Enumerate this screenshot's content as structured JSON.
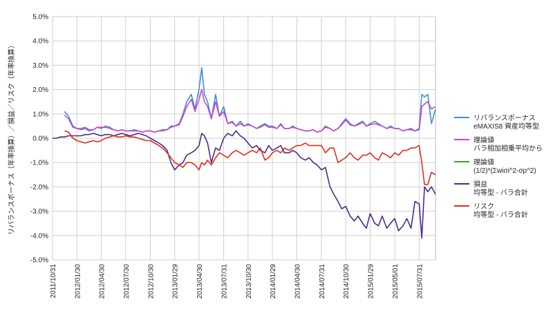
{
  "chart_data": {
    "type": "line",
    "title": "",
    "ylabel": "リバランスボーナス（年率換算）／損益／リスク（年率換算）",
    "ylim": [
      -5.0,
      5.0
    ],
    "yticks": [
      "5.0%",
      "4.0%",
      "3.0%",
      "2.0%",
      "1.0%",
      "0.0%",
      "-1.0%",
      "-2.0%",
      "-3.0%",
      "-4.0%",
      "-5.0%"
    ],
    "ytick_values": [
      5,
      4,
      3,
      2,
      1,
      0,
      -1,
      -2,
      -3,
      -4,
      -5
    ],
    "xticks": [
      "2011/10/31",
      "2012/01/30",
      "2012/04/30",
      "2012/07/30",
      "2012/10/30",
      "2013/01/29",
      "2013/04/30",
      "2013/07/31",
      "2013/10/30",
      "2014/01/29",
      "2014/04/30",
      "2014/07/31",
      "2014/10/30",
      "2015/01/29",
      "2015/05/01",
      "2015/07/31"
    ],
    "x_range": [
      "2011/10/31",
      "2015/09/30"
    ],
    "grid": true,
    "legend_position": "right",
    "series": [
      {
        "name": "リバランスボーナス\neMAXIS8 資産均等型",
        "color": "#3b8fd4",
        "x": [
          "2011/10/31",
          "2011/11/15",
          "2011/11/30",
          "2011/12/15",
          "2011/12/30",
          "2012/01/15",
          "2012/01/30",
          "2012/02/15",
          "2012/03/01",
          "2012/03/15",
          "2012/04/01",
          "2012/04/15",
          "2012/04/30",
          "2012/05/15",
          "2012/06/01",
          "2012/06/15",
          "2012/07/01",
          "2012/07/15",
          "2012/07/30",
          "2012/08/15",
          "2012/09/01",
          "2012/09/15",
          "2012/10/01",
          "2012/10/15",
          "2012/10/30",
          "2012/11/15",
          "2012/12/01",
          "2012/12/15",
          "2013/01/01",
          "2013/01/15",
          "2013/01/29",
          "2013/02/15",
          "2013/03/01",
          "2013/03/15",
          "2013/04/01",
          "2013/04/15",
          "2013/04/30",
          "2013/05/10",
          "2013/05/20",
          "2013/06/01",
          "2013/06/15",
          "2013/07/01",
          "2013/07/15",
          "2013/07/31",
          "2013/08/15",
          "2013/09/01",
          "2013/09/15",
          "2013/10/01",
          "2013/10/15",
          "2013/10/30",
          "2013/11/15",
          "2013/12/01",
          "2013/12/15",
          "2014/01/01",
          "2014/01/15",
          "2014/01/29",
          "2014/02/15",
          "2014/03/01",
          "2014/03/15",
          "2014/04/01",
          "2014/04/15",
          "2014/04/30",
          "2014/05/15",
          "2014/06/01",
          "2014/06/15",
          "2014/07/01",
          "2014/07/15",
          "2014/07/31",
          "2014/08/15",
          "2014/09/01",
          "2014/09/15",
          "2014/10/01",
          "2014/10/15",
          "2014/10/30",
          "2014/11/15",
          "2014/12/01",
          "2014/12/15",
          "2015/01/01",
          "2015/01/15",
          "2015/01/29",
          "2015/02/15",
          "2015/03/01",
          "2015/03/15",
          "2015/04/01",
          "2015/04/15",
          "2015/05/01",
          "2015/05/15",
          "2015/06/01",
          "2015/06/15",
          "2015/07/01",
          "2015/07/15",
          "2015/07/31",
          "2015/08/10",
          "2015/08/20",
          "2015/09/01",
          "2015/09/15",
          "2015/09/30"
        ],
        "values": [
          null,
          null,
          null,
          1.1,
          0.9,
          0.5,
          0.4,
          0.35,
          0.4,
          0.3,
          0.35,
          0.45,
          0.4,
          0.5,
          0.45,
          0.35,
          0.3,
          0.35,
          0.3,
          0.3,
          0.35,
          0.3,
          0.25,
          0.3,
          0.3,
          0.25,
          0.3,
          0.35,
          0.35,
          0.5,
          0.5,
          0.6,
          1.0,
          1.5,
          1.8,
          1.2,
          2.0,
          2.9,
          1.8,
          1.5,
          0.8,
          1.8,
          0.9,
          1.3,
          0.6,
          0.7,
          0.5,
          0.7,
          0.5,
          0.6,
          0.5,
          0.4,
          0.5,
          0.6,
          0.5,
          0.5,
          0.4,
          0.6,
          0.4,
          0.4,
          0.5,
          0.4,
          0.35,
          0.3,
          0.3,
          0.35,
          0.25,
          0.3,
          0.5,
          0.4,
          0.3,
          0.4,
          0.6,
          0.8,
          0.6,
          0.5,
          0.6,
          0.7,
          0.5,
          0.6,
          0.7,
          0.6,
          0.5,
          0.4,
          0.5,
          0.4,
          0.4,
          0.3,
          0.35,
          0.4,
          0.3,
          0.4,
          1.8,
          1.7,
          1.8,
          0.6,
          1.2
        ]
      },
      {
        "name": "理論値\nバラ相加相乗平均から",
        "color": "#cc44cc",
        "x": [
          "2011/10/31",
          "2011/11/15",
          "2011/11/30",
          "2011/12/15",
          "2011/12/30",
          "2012/01/15",
          "2012/01/30",
          "2012/02/15",
          "2012/03/01",
          "2012/03/15",
          "2012/04/01",
          "2012/04/15",
          "2012/04/30",
          "2012/05/15",
          "2012/06/01",
          "2012/06/15",
          "2012/07/01",
          "2012/07/15",
          "2012/07/30",
          "2012/08/15",
          "2012/09/01",
          "2012/09/15",
          "2012/10/01",
          "2012/10/15",
          "2012/10/30",
          "2012/11/15",
          "2012/12/01",
          "2012/12/15",
          "2013/01/01",
          "2013/01/15",
          "2013/01/29",
          "2013/02/15",
          "2013/03/01",
          "2013/03/15",
          "2013/04/01",
          "2013/04/15",
          "2013/04/30",
          "2013/05/10",
          "2013/05/20",
          "2013/06/01",
          "2013/06/15",
          "2013/07/01",
          "2013/07/15",
          "2013/07/31",
          "2013/08/15",
          "2013/09/01",
          "2013/09/15",
          "2013/10/01",
          "2013/10/15",
          "2013/10/30",
          "2013/11/15",
          "2013/12/01",
          "2013/12/15",
          "2014/01/01",
          "2014/01/15",
          "2014/01/29",
          "2014/02/15",
          "2014/03/01",
          "2014/03/15",
          "2014/04/01",
          "2014/04/15",
          "2014/04/30",
          "2014/05/15",
          "2014/06/01",
          "2014/06/15",
          "2014/07/01",
          "2014/07/15",
          "2014/07/31",
          "2014/08/15",
          "2014/09/01",
          "2014/09/15",
          "2014/10/01",
          "2014/10/15",
          "2014/10/30",
          "2014/11/15",
          "2014/12/01",
          "2014/12/15",
          "2015/01/01",
          "2015/01/15",
          "2015/01/29",
          "2015/02/15",
          "2015/03/01",
          "2015/03/15",
          "2015/04/01",
          "2015/04/15",
          "2015/05/01",
          "2015/05/15",
          "2015/06/01",
          "2015/06/15",
          "2015/07/01",
          "2015/07/15",
          "2015/07/31",
          "2015/08/10",
          "2015/08/20",
          "2015/09/01",
          "2015/09/15",
          "2015/09/30"
        ],
        "values": [
          null,
          null,
          null,
          0.95,
          0.8,
          0.45,
          0.4,
          0.4,
          0.45,
          0.35,
          0.35,
          0.45,
          0.45,
          0.45,
          0.4,
          0.35,
          0.3,
          0.35,
          0.3,
          0.3,
          0.3,
          0.3,
          0.25,
          0.3,
          0.3,
          0.25,
          0.3,
          0.3,
          0.35,
          0.45,
          0.5,
          0.55,
          0.9,
          1.3,
          1.6,
          1.1,
          1.6,
          2.0,
          1.5,
          1.3,
          0.8,
          1.5,
          0.9,
          1.1,
          0.6,
          0.65,
          0.5,
          0.6,
          0.5,
          0.55,
          0.5,
          0.4,
          0.45,
          0.55,
          0.45,
          0.45,
          0.4,
          0.55,
          0.4,
          0.4,
          0.45,
          0.4,
          0.35,
          0.3,
          0.3,
          0.35,
          0.25,
          0.3,
          0.45,
          0.4,
          0.3,
          0.4,
          0.55,
          0.75,
          0.55,
          0.5,
          0.55,
          0.65,
          0.5,
          0.55,
          0.6,
          0.55,
          0.5,
          0.4,
          0.45,
          0.4,
          0.4,
          0.3,
          0.35,
          0.35,
          0.3,
          0.35,
          1.3,
          1.4,
          1.5,
          1.2,
          1.3
        ]
      },
      {
        "name": "理論値\n(1/2)*(Σwiσi^2-σp^2)",
        "color": "#3a9e2a",
        "x": [],
        "values": []
      },
      {
        "name": "損益\n均等型 - バラ合計",
        "color": "#4b2a8a",
        "x": [
          "2011/10/31",
          "2011/11/15",
          "2011/11/30",
          "2011/12/15",
          "2011/12/30",
          "2012/01/15",
          "2012/01/30",
          "2012/02/15",
          "2012/03/01",
          "2012/03/15",
          "2012/04/01",
          "2012/04/15",
          "2012/04/30",
          "2012/05/15",
          "2012/06/01",
          "2012/06/15",
          "2012/07/01",
          "2012/07/15",
          "2012/07/30",
          "2012/08/15",
          "2012/09/01",
          "2012/09/15",
          "2012/10/01",
          "2012/10/15",
          "2012/10/30",
          "2012/11/15",
          "2012/12/01",
          "2012/12/15",
          "2013/01/01",
          "2013/01/15",
          "2013/01/29",
          "2013/02/15",
          "2013/03/01",
          "2013/03/15",
          "2013/04/01",
          "2013/04/15",
          "2013/04/30",
          "2013/05/10",
          "2013/05/20",
          "2013/06/01",
          "2013/06/15",
          "2013/07/01",
          "2013/07/15",
          "2013/07/31",
          "2013/08/15",
          "2013/09/01",
          "2013/09/15",
          "2013/10/01",
          "2013/10/15",
          "2013/10/30",
          "2013/11/15",
          "2013/12/01",
          "2013/12/15",
          "2014/01/01",
          "2014/01/15",
          "2014/01/29",
          "2014/02/15",
          "2014/03/01",
          "2014/03/15",
          "2014/04/01",
          "2014/04/15",
          "2014/04/30",
          "2014/05/15",
          "2014/06/01",
          "2014/06/15",
          "2014/07/01",
          "2014/07/15",
          "2014/07/31",
          "2014/08/15",
          "2014/09/01",
          "2014/09/15",
          "2014/10/01",
          "2014/10/15",
          "2014/10/30",
          "2014/11/15",
          "2014/12/01",
          "2014/12/15",
          "2015/01/01",
          "2015/01/15",
          "2015/01/29",
          "2015/02/15",
          "2015/03/01",
          "2015/03/15",
          "2015/04/01",
          "2015/04/15",
          "2015/05/01",
          "2015/05/15",
          "2015/06/01",
          "2015/06/15",
          "2015/07/01",
          "2015/07/15",
          "2015/07/31",
          "2015/08/10",
          "2015/08/20",
          "2015/09/01",
          "2015/09/15",
          "2015/09/30"
        ],
        "values": [
          0.0,
          0.0,
          0.05,
          0.05,
          0.1,
          0.1,
          0.1,
          0.1,
          0.15,
          0.15,
          0.2,
          0.15,
          0.1,
          0.15,
          0.15,
          0.1,
          0.15,
          0.2,
          0.15,
          0.1,
          0.15,
          0.2,
          0.15,
          0.1,
          0.0,
          -0.1,
          -0.2,
          -0.3,
          -0.5,
          -1.0,
          -1.3,
          -1.1,
          -1.0,
          -0.7,
          -0.6,
          -0.5,
          -0.3,
          0.2,
          0.1,
          -0.2,
          -1.0,
          -0.4,
          -0.5,
          0.0,
          0.2,
          0.1,
          0.3,
          0.1,
          0.0,
          -0.2,
          -0.4,
          -0.3,
          -0.5,
          -0.6,
          -0.3,
          -0.5,
          -0.4,
          -0.3,
          -0.6,
          -0.6,
          -0.5,
          -0.6,
          -0.8,
          -0.9,
          -0.8,
          -1.0,
          -1.1,
          -1.3,
          -1.2,
          -2.0,
          -2.3,
          -2.6,
          -2.9,
          -2.8,
          -3.2,
          -3.4,
          -3.2,
          -3.5,
          -3.7,
          -3.1,
          -3.5,
          -3.6,
          -3.2,
          -3.7,
          -3.5,
          -3.3,
          -3.8,
          -3.6,
          -3.3,
          -3.7,
          -2.6,
          -2.7,
          -4.1,
          -2.0,
          -2.2,
          -2.0,
          -2.3
        ]
      },
      {
        "name": "リスク\n均等型 - バラ合計",
        "color": "#d9301a",
        "x": [
          "2011/10/31",
          "2011/11/15",
          "2011/11/30",
          "2011/12/15",
          "2011/12/30",
          "2012/01/15",
          "2012/01/30",
          "2012/02/15",
          "2012/03/01",
          "2012/03/15",
          "2012/04/01",
          "2012/04/15",
          "2012/04/30",
          "2012/05/15",
          "2012/06/01",
          "2012/06/15",
          "2012/07/01",
          "2012/07/15",
          "2012/07/30",
          "2012/08/15",
          "2012/09/01",
          "2012/09/15",
          "2012/10/01",
          "2012/10/15",
          "2012/10/30",
          "2012/11/15",
          "2012/12/01",
          "2012/12/15",
          "2013/01/01",
          "2013/01/15",
          "2013/01/29",
          "2013/02/15",
          "2013/03/01",
          "2013/03/15",
          "2013/04/01",
          "2013/04/15",
          "2013/04/30",
          "2013/05/10",
          "2013/05/20",
          "2013/06/01",
          "2013/06/15",
          "2013/07/01",
          "2013/07/15",
          "2013/07/31",
          "2013/08/15",
          "2013/09/01",
          "2013/09/15",
          "2013/10/01",
          "2013/10/15",
          "2013/10/30",
          "2013/11/15",
          "2013/12/01",
          "2013/12/15",
          "2014/01/01",
          "2014/01/15",
          "2014/01/29",
          "2014/02/15",
          "2014/03/01",
          "2014/03/15",
          "2014/04/01",
          "2014/04/15",
          "2014/04/30",
          "2014/05/15",
          "2014/06/01",
          "2014/06/15",
          "2014/07/01",
          "2014/07/15",
          "2014/07/31",
          "2014/08/15",
          "2014/09/01",
          "2014/09/15",
          "2014/10/01",
          "2014/10/15",
          "2014/10/30",
          "2014/11/15",
          "2014/12/01",
          "2014/12/15",
          "2015/01/01",
          "2015/01/15",
          "2015/01/29",
          "2015/02/15",
          "2015/03/01",
          "2015/03/15",
          "2015/04/01",
          "2015/04/15",
          "2015/05/01",
          "2015/05/15",
          "2015/06/01",
          "2015/06/15",
          "2015/07/01",
          "2015/07/15",
          "2015/07/31",
          "2015/08/10",
          "2015/08/20",
          "2015/09/01",
          "2015/09/15",
          "2015/09/30"
        ],
        "values": [
          null,
          null,
          null,
          0.3,
          0.25,
          0.0,
          -0.1,
          -0.15,
          -0.2,
          -0.15,
          -0.1,
          -0.15,
          -0.1,
          0.0,
          0.05,
          0.1,
          0.05,
          0.05,
          0.1,
          0.05,
          0.05,
          0.0,
          -0.05,
          -0.1,
          -0.1,
          -0.2,
          -0.3,
          -0.4,
          -0.6,
          -0.8,
          -1.0,
          -1.1,
          -1.2,
          -1.0,
          -1.0,
          -1.1,
          -1.3,
          -1.0,
          -1.1,
          -0.9,
          -1.1,
          -0.8,
          -0.6,
          -0.7,
          -0.8,
          -0.6,
          -0.5,
          -0.6,
          -0.7,
          -0.6,
          -0.5,
          -0.6,
          -0.4,
          -0.9,
          -0.8,
          -0.6,
          -0.5,
          -0.6,
          -0.4,
          -0.5,
          -0.4,
          -0.3,
          -0.3,
          -0.2,
          -0.3,
          -0.3,
          -0.3,
          -0.3,
          -0.6,
          -0.4,
          -0.4,
          -1.0,
          -0.9,
          -0.8,
          -0.6,
          -0.8,
          -0.9,
          -0.7,
          -0.7,
          -0.6,
          -0.8,
          -0.9,
          -0.6,
          -0.7,
          -0.8,
          -0.6,
          -0.7,
          -0.5,
          -0.5,
          -0.4,
          -0.4,
          -0.3,
          -1.0,
          -1.9,
          -1.9,
          -1.4,
          -1.5
        ]
      }
    ]
  }
}
